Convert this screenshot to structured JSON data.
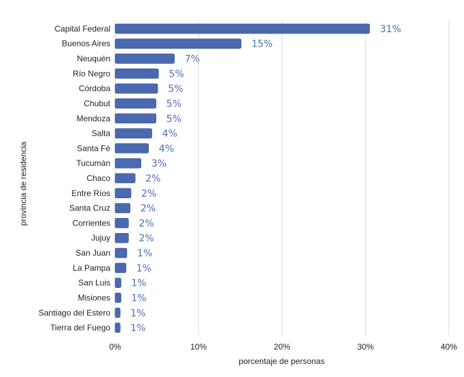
{
  "chart_data": {
    "type": "bar",
    "orientation": "horizontal",
    "categories": [
      "Capital Federal",
      "Buenos Aires",
      "Neuquén",
      "Río Negro",
      "Córdoba",
      "Chubut",
      "Mendoza",
      "Salta",
      "Santa Fé",
      "Tucumán",
      "Chaco",
      "Entre Ríos",
      "Santa Cruz",
      "Corrientes",
      "Jujuy",
      "San Juan",
      "La Pampa",
      "San Luis",
      "Misiones",
      "Santiago del Estero",
      "Tierra del Fuego"
    ],
    "values": [
      30.5,
      15.1,
      7.1,
      5.2,
      5.1,
      4.9,
      4.9,
      4.4,
      4.0,
      3.1,
      2.4,
      1.9,
      1.8,
      1.6,
      1.6,
      1.4,
      1.3,
      0.7,
      0.7,
      0.6,
      0.6
    ],
    "data_labels": [
      "31%",
      "15%",
      "7%",
      "5%",
      "5%",
      "5%",
      "5%",
      "4%",
      "4%",
      "3%",
      "2%",
      "2%",
      "2%",
      "2%",
      "2%",
      "1%",
      "1%",
      "1%",
      "1%",
      "1%",
      "1%"
    ],
    "xlabel": "porcentaje de personas",
    "ylabel": "provincia de residencia",
    "xlim": [
      0,
      40
    ],
    "xticks": [
      0,
      10,
      20,
      30,
      40
    ],
    "xtick_labels": [
      "0%",
      "10%",
      "20%",
      "30%",
      "40%"
    ],
    "grid": "vertical",
    "legend": "none",
    "colors": {
      "bar": "#4a69b0",
      "bar_stroke": "#2f4f8e",
      "data_label": "#4a6fae",
      "grid": "#d9d9d9"
    }
  }
}
